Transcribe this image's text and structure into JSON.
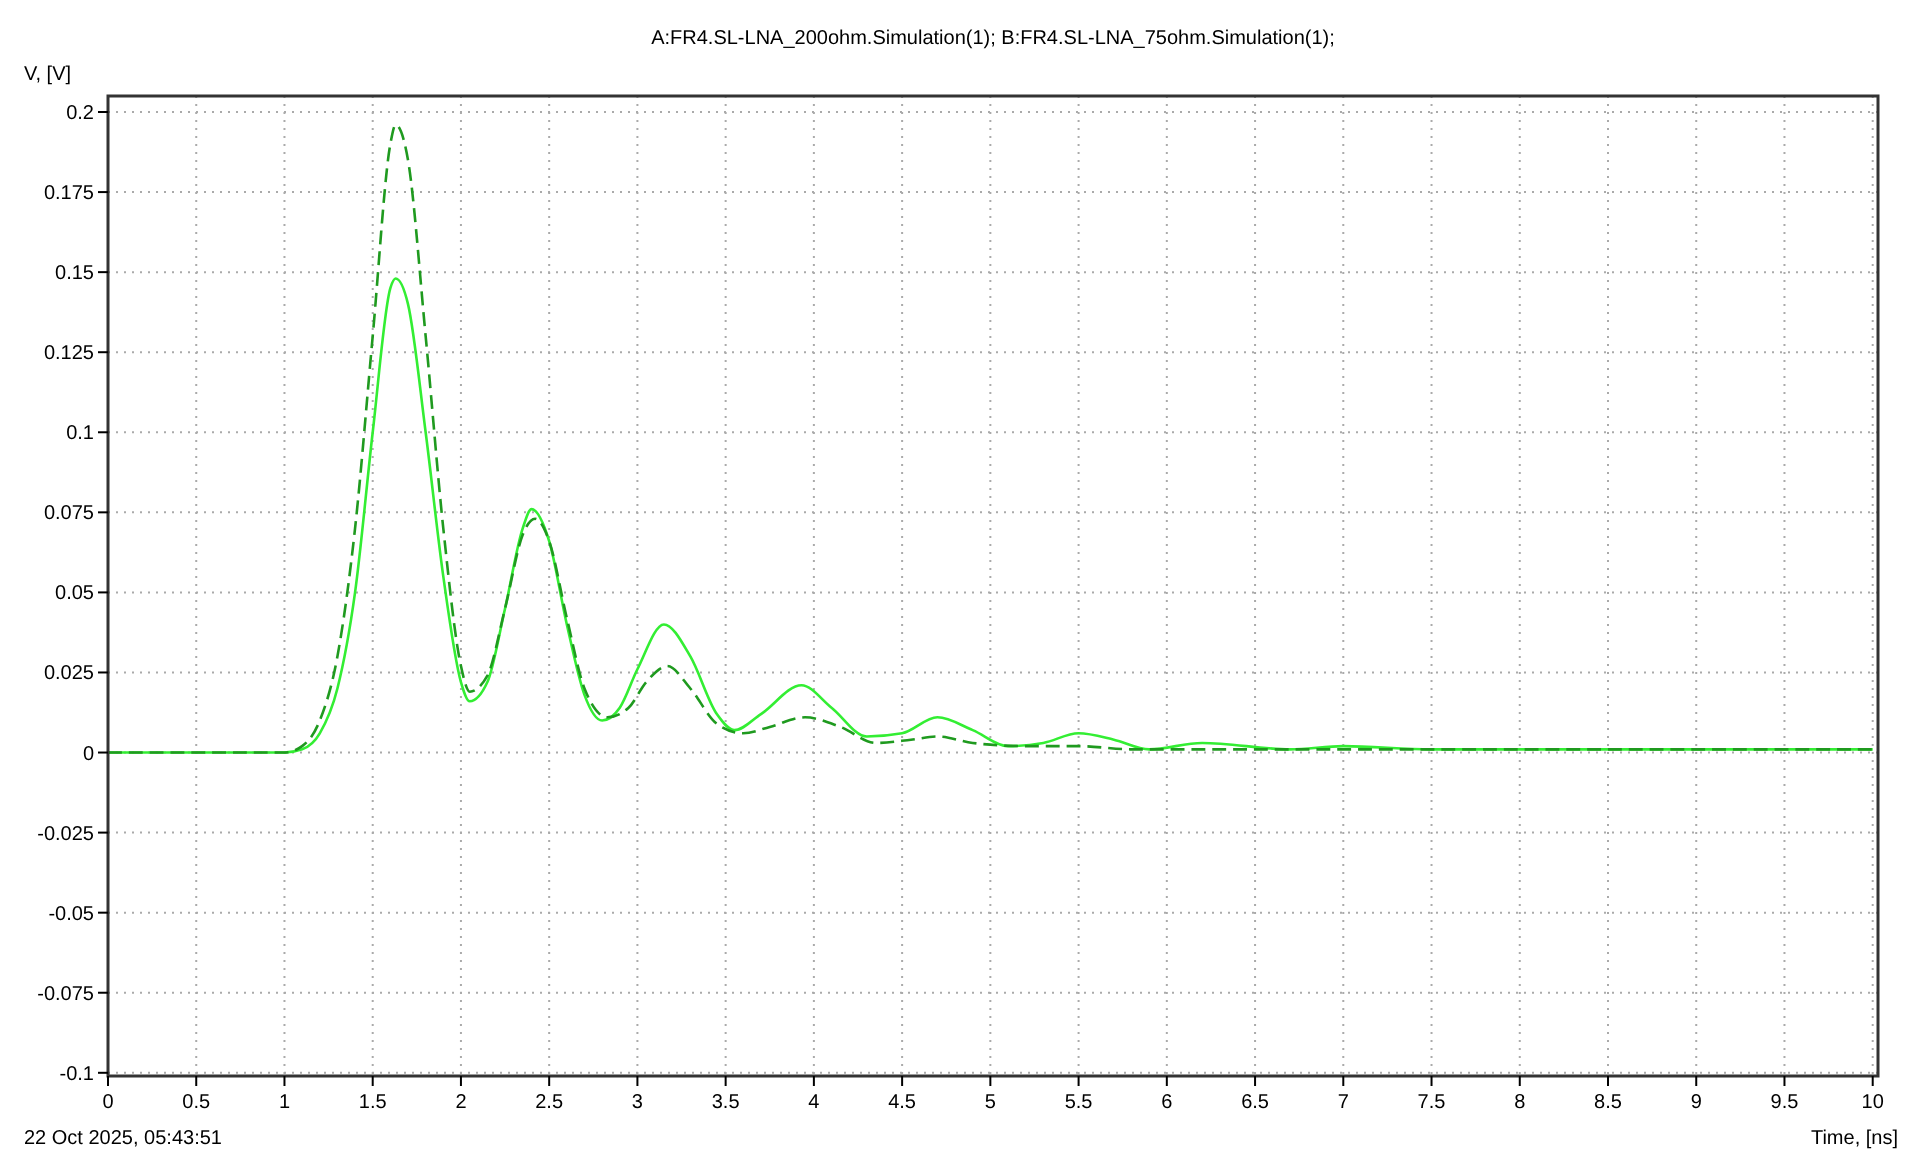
{
  "chart_data": {
    "type": "line",
    "title": "A:FR4.SL-LNA_200ohm.Simulation(1); B:FR4.SL-LNA_75ohm.Simulation(1);",
    "xlabel": "Time, [ns]",
    "ylabel": "V, [V]",
    "annotations": [
      "22 Oct 2025, 05:43:51"
    ],
    "xlim": [
      0,
      10.03
    ],
    "ylim": [
      -0.101,
      0.205
    ],
    "xticks": [
      0,
      0.5,
      1,
      1.5,
      2,
      2.5,
      3,
      3.5,
      4,
      4.5,
      5,
      5.5,
      6,
      6.5,
      7,
      7.5,
      8,
      8.5,
      9,
      9.5,
      10
    ],
    "yticks": [
      -0.1,
      -0.075,
      -0.05,
      -0.025,
      0,
      0.025,
      0.05,
      0.075,
      0.1,
      0.125,
      0.15,
      0.175,
      0.2
    ],
    "grid": true,
    "series": [
      {
        "color": "#1f9a1f",
        "line_style": "dashed",
        "x": [
          0,
          1,
          1.1,
          1.2,
          1.3,
          1.4,
          1.5,
          1.6,
          1.63,
          1.7,
          1.8,
          1.9,
          2,
          2.05,
          2.15,
          2.25,
          2.35,
          2.42,
          2.5,
          2.6,
          2.7,
          2.83,
          2.95,
          3.05,
          3.17,
          3.3,
          3.45,
          3.6,
          3.75,
          3.95,
          4.15,
          4.35,
          4.55,
          4.7,
          4.9,
          5.2,
          5.5,
          5.8,
          6.2,
          7,
          8,
          10
        ],
        "values": [
          0,
          0,
          0.002,
          0.01,
          0.03,
          0.07,
          0.13,
          0.19,
          0.196,
          0.185,
          0.13,
          0.07,
          0.027,
          0.019,
          0.024,
          0.045,
          0.068,
          0.073,
          0.066,
          0.042,
          0.02,
          0.011,
          0.014,
          0.022,
          0.027,
          0.02,
          0.009,
          0.006,
          0.008,
          0.011,
          0.008,
          0.003,
          0.004,
          0.005,
          0.003,
          0.002,
          0.002,
          0.001,
          0.001,
          0.001,
          0.001,
          0.001
        ]
      },
      {
        "color": "#33ee33",
        "line_style": "solid",
        "x": [
          0,
          1,
          1.1,
          1.2,
          1.3,
          1.4,
          1.5,
          1.6,
          1.63,
          1.7,
          1.8,
          1.9,
          2,
          2.05,
          2.15,
          2.25,
          2.35,
          2.4,
          2.5,
          2.6,
          2.7,
          2.8,
          2.9,
          3,
          3.15,
          3.3,
          3.45,
          3.55,
          3.7,
          3.93,
          4.1,
          4.3,
          4.5,
          4.7,
          4.9,
          5.1,
          5.3,
          5.5,
          5.7,
          5.9,
          6.2,
          6.7,
          7,
          7.5,
          8,
          10
        ],
        "values": [
          0,
          0,
          0.001,
          0.006,
          0.02,
          0.05,
          0.1,
          0.145,
          0.148,
          0.14,
          0.1,
          0.055,
          0.022,
          0.016,
          0.022,
          0.045,
          0.07,
          0.076,
          0.066,
          0.04,
          0.018,
          0.01,
          0.014,
          0.026,
          0.04,
          0.03,
          0.012,
          0.007,
          0.012,
          0.021,
          0.014,
          0.005,
          0.006,
          0.011,
          0.007,
          0.002,
          0.003,
          0.006,
          0.004,
          0.001,
          0.003,
          0.001,
          0.002,
          0.001,
          0.001,
          0.001
        ]
      }
    ]
  }
}
